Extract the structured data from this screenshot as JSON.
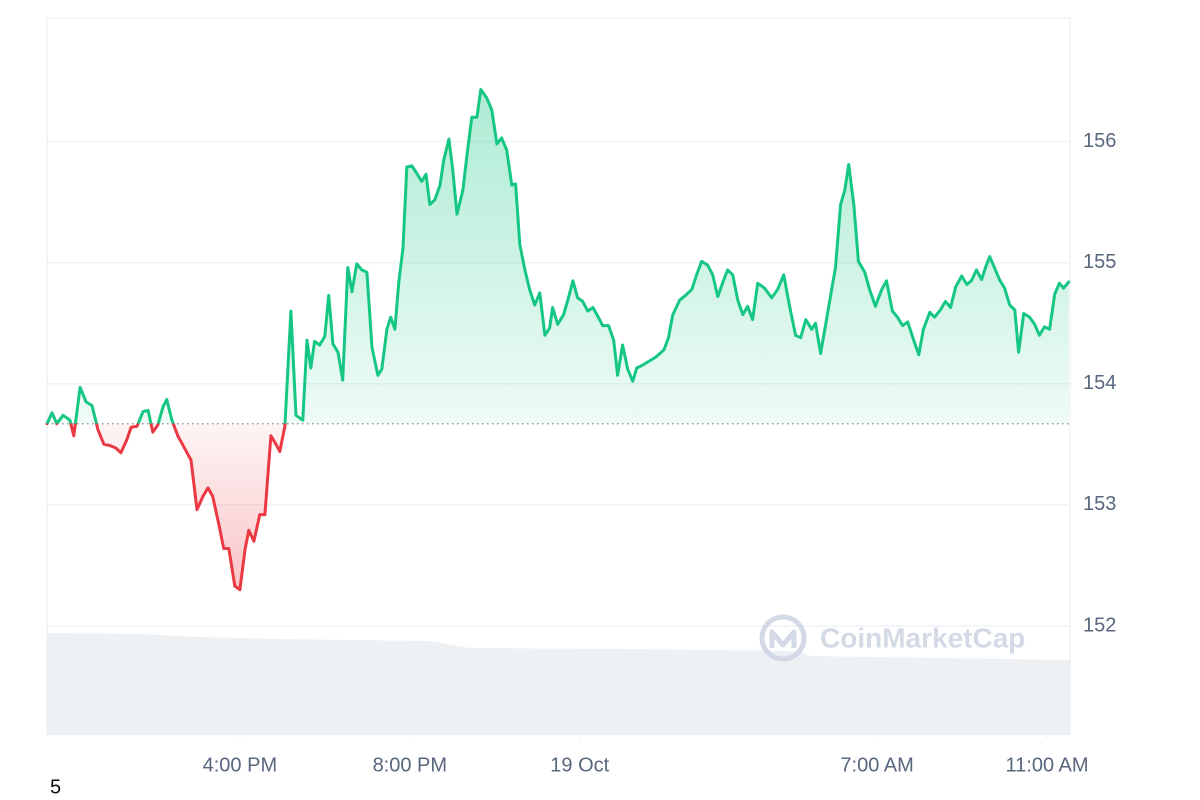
{
  "chart_data": {
    "type": "line",
    "x": [
      11.46,
      11.58,
      11.69,
      11.84,
      12.0,
      12.09,
      12.24,
      12.38,
      12.52,
      12.66,
      12.8,
      12.94,
      13.08,
      13.2,
      13.34,
      13.44,
      13.58,
      13.72,
      13.84,
      13.95,
      14.07,
      14.19,
      14.28,
      14.4,
      14.54,
      14.71,
      14.85,
      14.99,
      15.13,
      15.25,
      15.36,
      15.51,
      15.62,
      15.74,
      15.88,
      16.0,
      16.12,
      16.21,
      16.33,
      16.47,
      16.59,
      16.73,
      16.85,
      16.94,
      17.06,
      17.2,
      17.32,
      17.48,
      17.58,
      17.67,
      17.76,
      17.88,
      18.0,
      18.09,
      18.19,
      18.31,
      18.42,
      18.54,
      18.64,
      18.75,
      18.87,
      18.99,
      19.11,
      19.25,
      19.34,
      19.46,
      19.55,
      19.65,
      19.74,
      19.84,
      19.93,
      20.05,
      20.16,
      20.28,
      20.38,
      20.47,
      20.59,
      20.71,
      20.8,
      20.92,
      21.01,
      21.11,
      21.25,
      21.36,
      21.46,
      21.58,
      21.67,
      21.81,
      21.93,
      22.05,
      22.16,
      22.28,
      22.4,
      22.49,
      22.59,
      22.71,
      22.82,
      22.94,
      23.06,
      23.18,
      23.29,
      23.36,
      23.48,
      23.62,
      23.72,
      23.84,
      23.95,
      24.07,
      24.19,
      24.31,
      24.42,
      24.54,
      24.68,
      24.8,
      24.89,
      25.01,
      25.13,
      25.25,
      25.34,
      25.46,
      25.6,
      25.79,
      25.98,
      26.09,
      26.19,
      26.35,
      26.49,
      26.64,
      26.75,
      26.87,
      27.01,
      27.13,
      27.25,
      27.36,
      27.48,
      27.6,
      27.72,
      27.84,
      27.95,
      28.07,
      28.19,
      28.35,
      28.52,
      28.66,
      28.8,
      28.94,
      29.08,
      29.2,
      29.32,
      29.46,
      29.55,
      29.67,
      29.79,
      29.93,
      30.02,
      30.14,
      30.24,
      30.33,
      30.45,
      30.56,
      30.71,
      30.82,
      30.96,
      31.11,
      31.22,
      31.36,
      31.48,
      31.6,
      31.72,
      31.86,
      31.98,
      32.09,
      32.24,
      32.35,
      32.49,
      32.61,
      32.73,
      32.85,
      32.99,
      33.11,
      33.22,
      33.34,
      33.46,
      33.55,
      33.65,
      33.76,
      33.88,
      34.0,
      34.12,
      34.24,
      34.33,
      34.45,
      34.59,
      34.71,
      34.82,
      34.94,
      35.06,
      35.18,
      35.29,
      35.39,
      35.51
    ],
    "values": [
      153.67,
      153.76,
      153.67,
      153.74,
      153.7,
      153.57,
      153.97,
      153.85,
      153.82,
      153.62,
      153.5,
      153.49,
      153.47,
      153.43,
      153.54,
      153.64,
      153.65,
      153.77,
      153.78,
      153.6,
      153.66,
      153.81,
      153.87,
      153.7,
      153.57,
      153.46,
      153.37,
      152.96,
      153.07,
      153.14,
      153.07,
      152.83,
      152.64,
      152.64,
      152.33,
      152.3,
      152.63,
      152.79,
      152.7,
      152.92,
      152.92,
      153.57,
      153.5,
      153.44,
      153.65,
      154.6,
      153.74,
      153.7,
      154.36,
      154.13,
      154.35,
      154.32,
      154.39,
      154.73,
      154.33,
      154.26,
      154.03,
      154.96,
      154.76,
      154.99,
      154.94,
      154.92,
      154.3,
      154.07,
      154.12,
      154.45,
      154.55,
      154.45,
      154.84,
      155.12,
      155.79,
      155.8,
      155.74,
      155.67,
      155.73,
      155.48,
      155.52,
      155.64,
      155.85,
      156.02,
      155.77,
      155.4,
      155.6,
      155.93,
      156.2,
      156.2,
      156.43,
      156.36,
      156.26,
      155.98,
      156.03,
      155.93,
      155.64,
      155.65,
      155.15,
      154.94,
      154.78,
      154.65,
      154.75,
      154.4,
      154.46,
      154.63,
      154.49,
      154.57,
      154.69,
      154.85,
      154.71,
      154.68,
      154.6,
      154.63,
      154.56,
      154.48,
      154.48,
      154.36,
      154.07,
      154.32,
      154.12,
      154.02,
      154.13,
      154.15,
      154.18,
      154.22,
      154.28,
      154.38,
      154.57,
      154.69,
      154.73,
      154.78,
      154.9,
      155.01,
      154.98,
      154.9,
      154.72,
      154.83,
      154.94,
      154.9,
      154.69,
      154.57,
      154.64,
      154.53,
      154.83,
      154.79,
      154.71,
      154.78,
      154.9,
      154.64,
      154.4,
      154.38,
      154.53,
      154.45,
      154.5,
      154.25,
      154.49,
      154.78,
      154.96,
      155.48,
      155.6,
      155.81,
      155.48,
      155.01,
      154.92,
      154.78,
      154.64,
      154.78,
      154.85,
      154.6,
      154.55,
      154.48,
      154.51,
      154.36,
      154.24,
      154.45,
      154.59,
      154.55,
      154.61,
      154.68,
      154.63,
      154.8,
      154.89,
      154.82,
      154.85,
      154.94,
      154.86,
      154.96,
      155.05,
      154.96,
      154.86,
      154.79,
      154.65,
      154.61,
      154.26,
      154.58,
      154.55,
      154.49,
      154.4,
      154.47,
      154.45,
      154.74,
      154.83,
      154.79,
      154.84
    ],
    "reference_line": 153.67,
    "up_color": "#16c784",
    "down_color": "#ea3943",
    "xlim": [
      11.46,
      35.54
    ],
    "xticks": [
      {
        "value": 16,
        "label": "4:00 PM"
      },
      {
        "value": 20,
        "label": "8:00 PM"
      },
      {
        "value": 24,
        "label": "19 Oct"
      },
      {
        "value": 31,
        "label": "7:00 AM"
      },
      {
        "value": 35,
        "label": "11:00 AM"
      }
    ],
    "ylim": [
      151.1,
      157.02
    ],
    "yticks": [
      152,
      153,
      154,
      155,
      156
    ],
    "grid": true,
    "watermark": "CoinMarketCap",
    "footer": "5"
  }
}
